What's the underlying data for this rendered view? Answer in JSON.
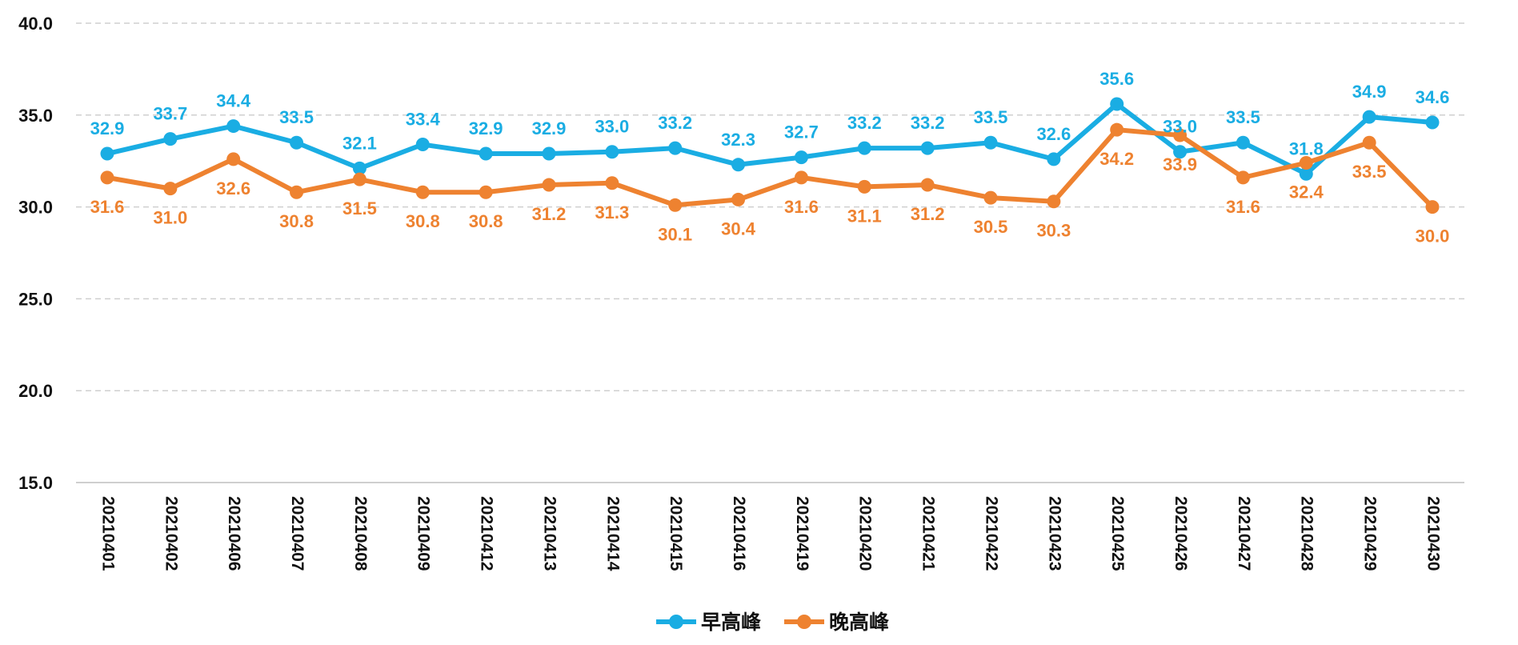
{
  "chart_data": {
    "type": "line",
    "categories": [
      "20210401",
      "20210402",
      "20210406",
      "20210407",
      "20210408",
      "20210409",
      "20210412",
      "20210413",
      "20210414",
      "20210415",
      "20210416",
      "20210419",
      "20210420",
      "20210421",
      "20210422",
      "20210423",
      "20210425",
      "20210426",
      "20210427",
      "20210428",
      "20210429",
      "20210430"
    ],
    "series": [
      {
        "name": "早高峰",
        "color": "#1AADE3",
        "values": [
          32.9,
          33.7,
          34.4,
          33.5,
          32.1,
          33.4,
          32.9,
          32.9,
          33.0,
          33.2,
          32.3,
          32.7,
          33.2,
          33.2,
          33.5,
          32.6,
          35.6,
          33.0,
          33.5,
          31.8,
          34.9,
          34.6
        ]
      },
      {
        "name": "晚高峰",
        "color": "#EE8230",
        "values": [
          31.6,
          31.0,
          32.6,
          30.8,
          31.5,
          30.8,
          30.8,
          31.2,
          31.3,
          30.1,
          30.4,
          31.6,
          31.1,
          31.2,
          30.5,
          30.3,
          34.2,
          33.9,
          31.6,
          32.4,
          33.5,
          30.0
        ]
      }
    ],
    "ylim": [
      15,
      40
    ],
    "yticks": [
      "15.0",
      "20.0",
      "25.0",
      "30.0",
      "35.0",
      "40.0"
    ],
    "grid": true,
    "legend": "bottom-center",
    "title": "",
    "xlabel": "",
    "ylabel": ""
  }
}
